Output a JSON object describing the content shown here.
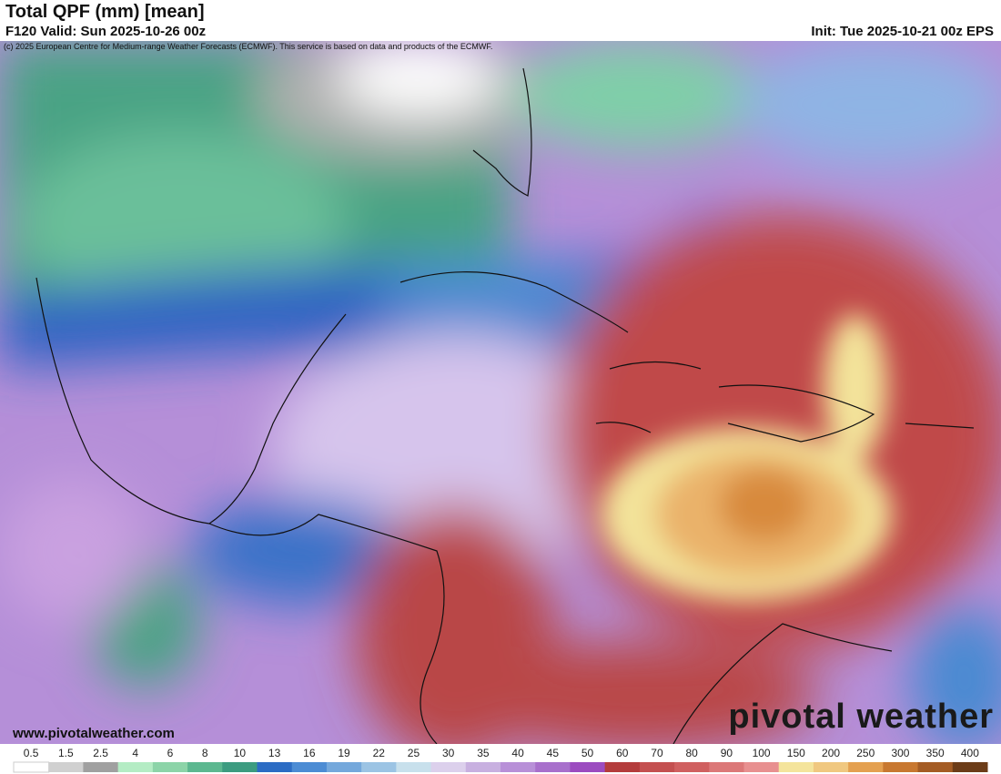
{
  "header": {
    "title": "Total QPF (mm) [mean]",
    "valid": "F120 Valid: Sun 2025-10-26 00z",
    "init": "Init: Tue 2025-10-21 00z EPS",
    "copyright": "(c) 2025 European Centre for Medium-range Weather Forecasts (ECMWF). This service is based on data and products of the ECMWF."
  },
  "map": {
    "website": "www.pivotalweather.com",
    "logo": "pivotal weather"
  },
  "colorbar": {
    "labels": [
      0.5,
      1.5,
      2.5,
      4,
      6,
      8,
      10,
      13,
      16,
      19,
      22,
      25,
      30,
      35,
      40,
      45,
      50,
      60,
      70,
      80,
      90,
      100,
      150,
      200,
      250,
      300,
      350,
      400
    ],
    "colors": [
      "#ffffff",
      "#d0d0d0",
      "#a0a0a0",
      "#b4ecc4",
      "#8cd4a8",
      "#5cb890",
      "#3c9c80",
      "#2c6cc4",
      "#4c8cd4",
      "#74a8dc",
      "#9cc4e4",
      "#c8e0ec",
      "#dcd0ec",
      "#c8b0e0",
      "#b890d8",
      "#a870cc",
      "#9c4cc0",
      "#b43c3c",
      "#c45050",
      "#d06060",
      "#dc7878",
      "#e89090",
      "#f4e49c",
      "#f0c880",
      "#e4a050",
      "#c87830",
      "#a45c24",
      "#6c3c18"
    ]
  }
}
